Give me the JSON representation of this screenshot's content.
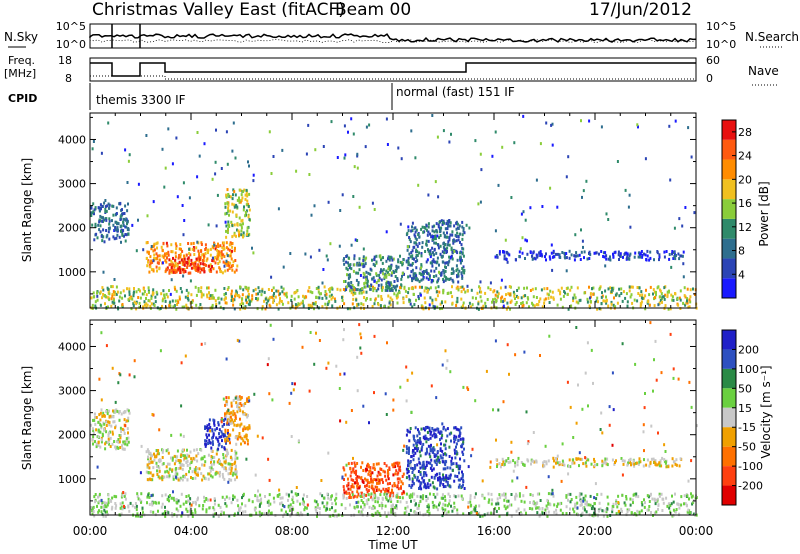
{
  "header": {
    "title": "Christmas Valley East (fitACF)",
    "beam": "Beam 00",
    "date": "17/Jun/2012"
  },
  "strips": {
    "nsky_label": "N.Sky",
    "nsearch_label": "N.Search",
    "noise_left_ticks": [
      "10^5",
      "10^0"
    ],
    "noise_right_ticks": [
      "10^5",
      "10^0"
    ],
    "freq_label_1": "Freq.",
    "freq_label_2": "[MHz]",
    "freq_ticks": [
      "18",
      "8"
    ],
    "nave_label": "Nave",
    "nave_ticks": [
      "60",
      "0"
    ],
    "cpid_label": "CPID",
    "cpid_segments": [
      {
        "start_hour": 0,
        "text": "themis 3300 IF"
      },
      {
        "start_hour": 12,
        "text": "normal (fast) 151 IF"
      }
    ]
  },
  "panels": {
    "ylabel": "Slant Range [km]",
    "xlabel": "Time UT",
    "power_cbar_label": "Power [dB]",
    "velocity_cbar_label": "Velocity [m s⁻¹]"
  },
  "colors": {
    "power_scale": [
      "#1a1aff",
      "#2b44b5",
      "#2e6e8e",
      "#2f8a6a",
      "#8acd3a",
      "#f0c020",
      "#ff8c00",
      "#ff5a10",
      "#e81010"
    ],
    "velocity_scale": [
      "#2020c8",
      "#2d50c0",
      "#2a8a46",
      "#6ad040",
      "#c8c8c8",
      "#f0a000",
      "#ff7000",
      "#ff4010",
      "#e00000"
    ],
    "ground_scatter": "#bebebe"
  },
  "chart_data": [
    {
      "type": "heatmap",
      "title": "Power",
      "xlabel": "Time UT",
      "ylabel": "Slant Range [km]",
      "xlim": [
        0,
        24
      ],
      "ylim": [
        180,
        4600
      ],
      "x_ticks": [
        "00:00",
        "04:00",
        "08:00",
        "12:00",
        "16:00",
        "20:00",
        "00:00"
      ],
      "y_ticks": [
        1000,
        2000,
        3000,
        4000
      ],
      "colorbar_label": "Power [dB]",
      "colorbar_ticks": [
        4,
        8,
        12,
        16,
        20,
        24,
        28
      ],
      "colorbar_range": [
        0,
        30
      ],
      "regions": [
        {
          "t_start": 0.0,
          "t_end": 1.5,
          "r_start": 1700,
          "r_end": 2600,
          "value": 8
        },
        {
          "t_start": 2.2,
          "t_end": 5.8,
          "r_start": 1000,
          "r_end": 1700,
          "value": 22
        },
        {
          "t_start": 3.0,
          "t_end": 4.8,
          "r_start": 1000,
          "r_end": 1350,
          "value": 28
        },
        {
          "t_start": 5.3,
          "t_end": 6.3,
          "r_start": 1800,
          "r_end": 2900,
          "value": 16
        },
        {
          "t_start": 10.0,
          "t_end": 12.4,
          "r_start": 600,
          "r_end": 1400,
          "value": 10
        },
        {
          "t_start": 12.5,
          "t_end": 14.8,
          "r_start": 800,
          "r_end": 2200,
          "value": 8
        },
        {
          "t_start": 16.0,
          "t_end": 23.5,
          "r_start": 1300,
          "r_end": 1500,
          "value": 4
        },
        {
          "t_start": 0.0,
          "t_end": 24.0,
          "r_start": 180,
          "r_end": 700,
          "value": 16
        }
      ]
    },
    {
      "type": "heatmap",
      "title": "Velocity",
      "xlabel": "Time UT",
      "ylabel": "Slant Range [km]",
      "xlim": [
        0,
        24
      ],
      "ylim": [
        180,
        4600
      ],
      "x_ticks": [
        "00:00",
        "04:00",
        "08:00",
        "12:00",
        "16:00",
        "20:00",
        "00:00"
      ],
      "y_ticks": [
        1000,
        2000,
        3000,
        4000
      ],
      "colorbar_label": "Velocity [m s⁻¹]",
      "colorbar_ticks": [
        200,
        100,
        50,
        15,
        -15,
        -50,
        -100,
        -200
      ],
      "colorbar_range": [
        -250,
        250
      ],
      "regions": [
        {
          "t_start": 0.0,
          "t_end": 1.5,
          "r_start": 1700,
          "r_end": 2600,
          "value": 0
        },
        {
          "t_start": 2.2,
          "t_end": 5.8,
          "r_start": 1000,
          "r_end": 1700,
          "value": 0
        },
        {
          "t_start": 4.5,
          "t_end": 5.5,
          "r_start": 1700,
          "r_end": 2400,
          "value": 200
        },
        {
          "t_start": 5.3,
          "t_end": 6.3,
          "r_start": 1800,
          "r_end": 2900,
          "value": -60
        },
        {
          "t_start": 10.0,
          "t_end": 12.4,
          "r_start": 600,
          "r_end": 1400,
          "value": -150
        },
        {
          "t_start": 12.5,
          "t_end": 14.8,
          "r_start": 800,
          "r_end": 2200,
          "value": 180
        },
        {
          "t_start": 16.0,
          "t_end": 23.5,
          "r_start": 1300,
          "r_end": 1500,
          "value": 0
        },
        {
          "t_start": 0.0,
          "t_end": 24.0,
          "r_start": 180,
          "r_end": 700,
          "value": 40
        }
      ]
    }
  ]
}
